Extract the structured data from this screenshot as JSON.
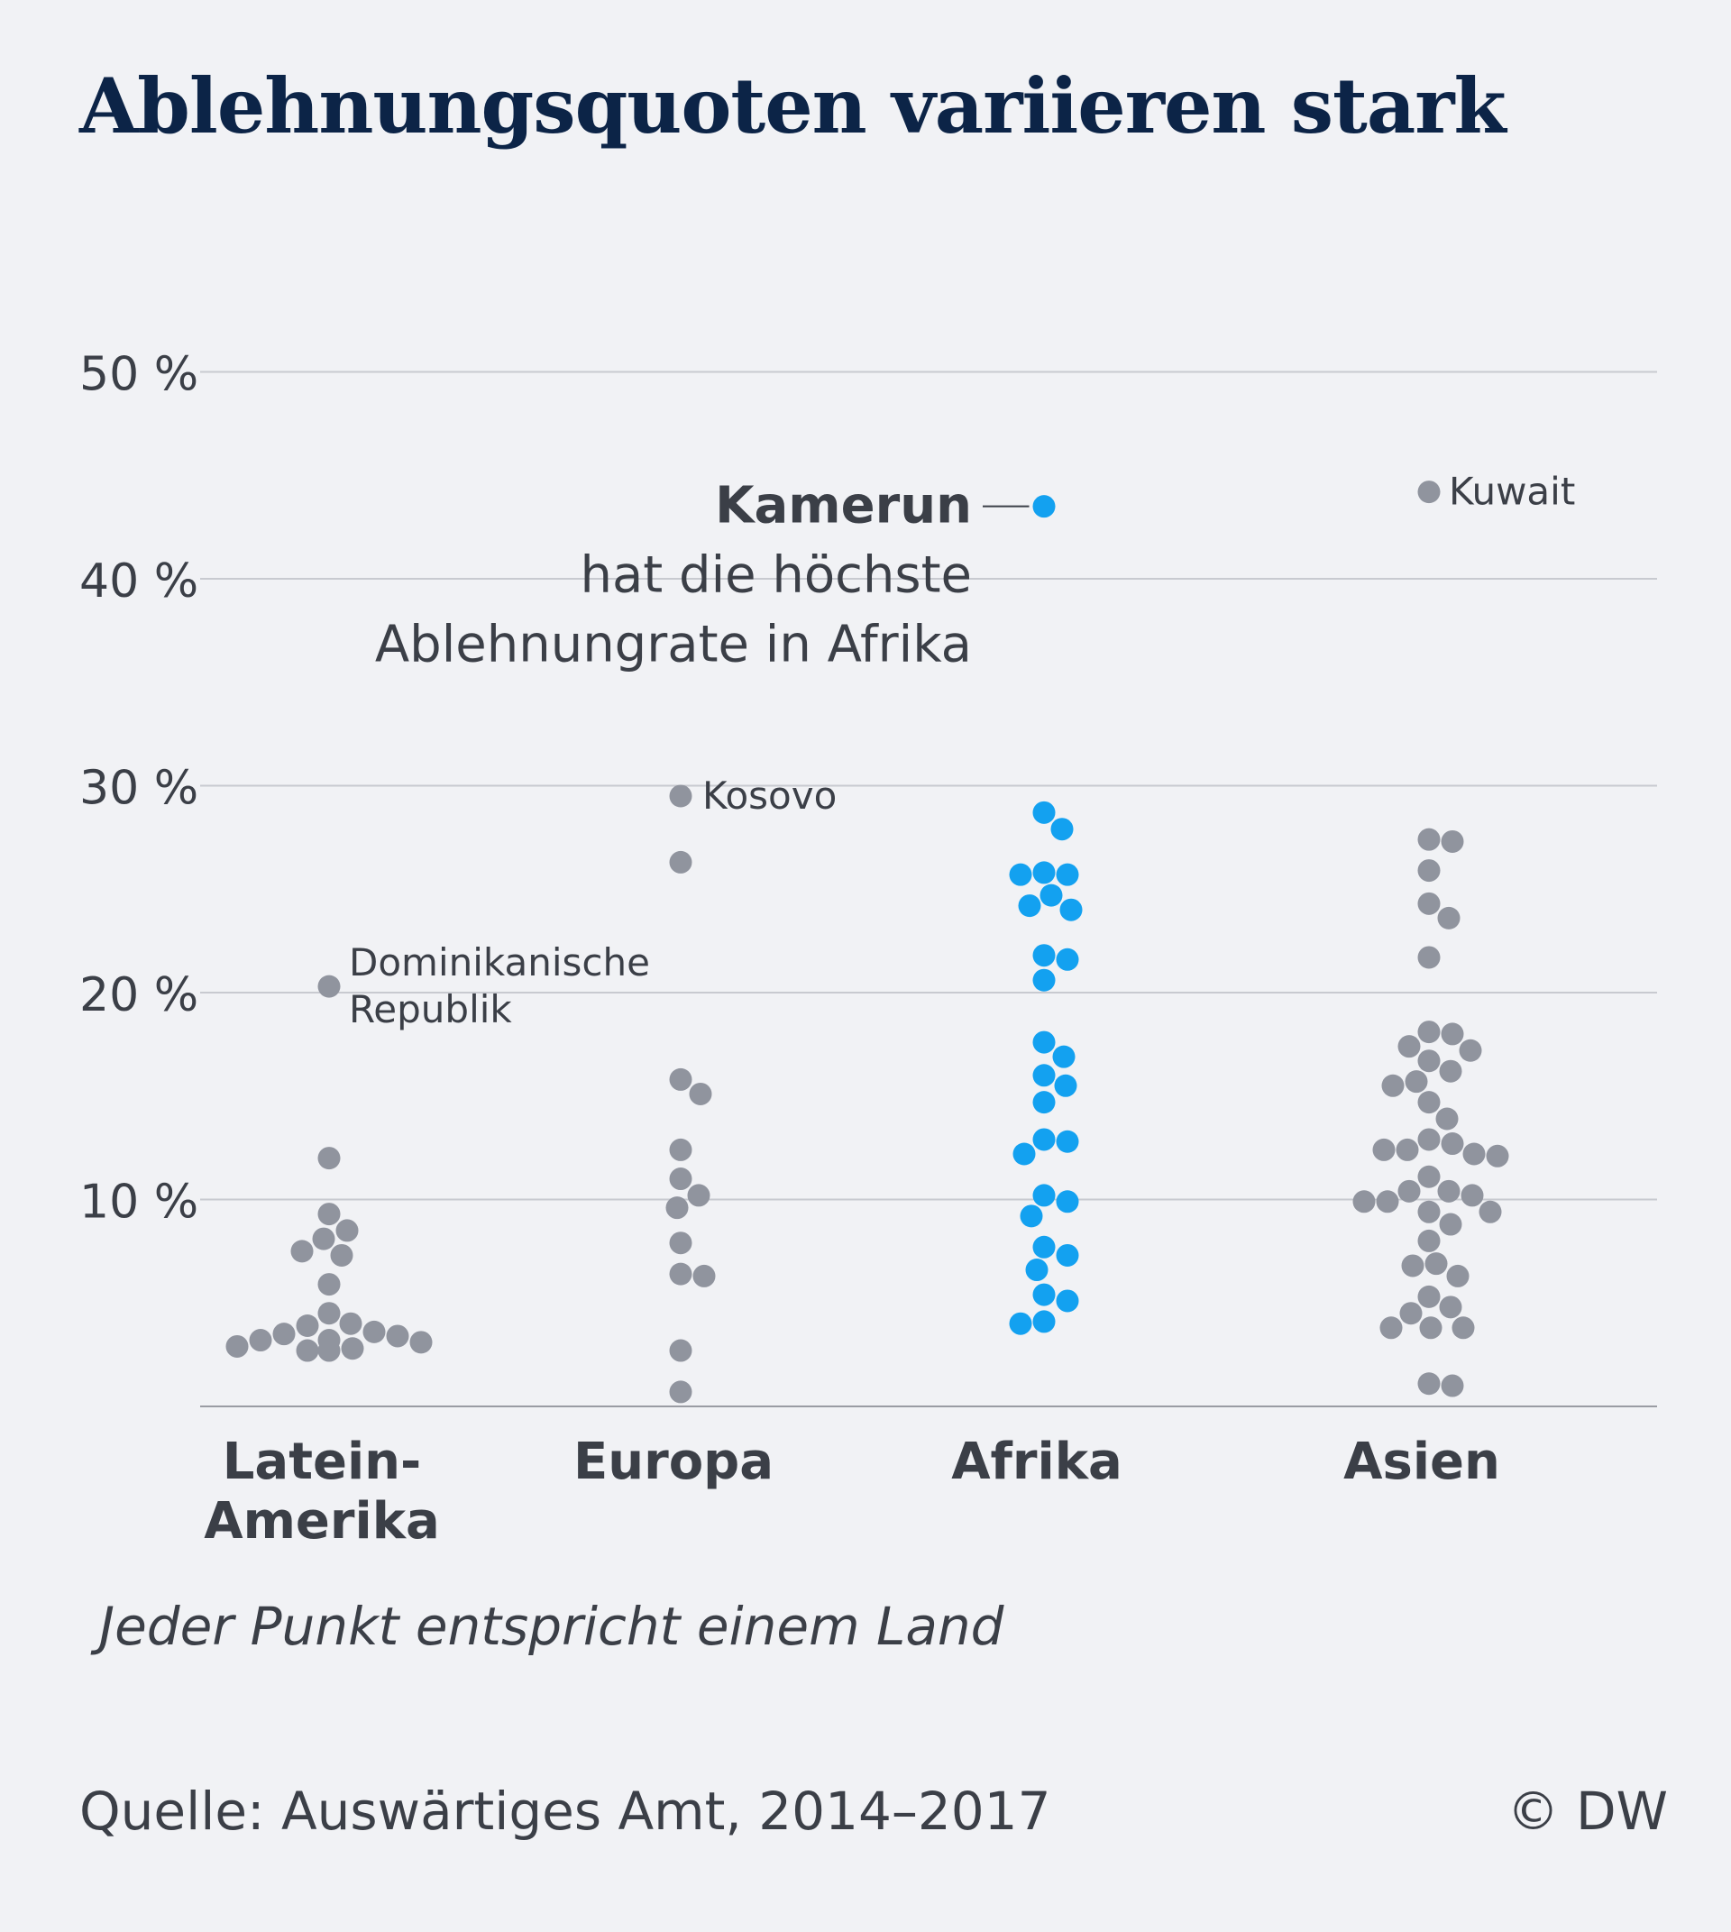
{
  "title": "Ablehnungsquoten variieren stark",
  "note": "Jeder Punkt entspricht einem Land",
  "source": "Quelle: Auswärtiges Amt, 2014–2017",
  "credit": "© DW",
  "colors": {
    "title": "#0c2447",
    "text": "#3b3f47",
    "dot": "#90949e",
    "highlight": "#13a1f0",
    "grid": "#c8cad0",
    "background": "#f1f2f5"
  },
  "chart_data": {
    "type": "scatter",
    "title": "Ablehnungsquoten variieren stark",
    "ylim": [
      0,
      50
    ],
    "yticks": [
      10,
      20,
      30,
      40,
      50
    ],
    "ytick_labels": [
      "10 %",
      "20 %",
      "30 %",
      "40 %",
      "50 %"
    ],
    "grid": true,
    "categories": [
      "Latein-\nAmerika",
      "Europa",
      "Afrika",
      "Asien"
    ],
    "series": [
      {
        "category": "Latein-\nAmerika",
        "highlight": false,
        "values": [
          20.3,
          12.0,
          9.3,
          8.5,
          8.1,
          7.5,
          7.3,
          5.9,
          4.5,
          4.0,
          3.9,
          3.6,
          3.5,
          3.4,
          3.2,
          3.2,
          3.1,
          2.9,
          2.8,
          2.7,
          2.7
        ]
      },
      {
        "category": "Europa",
        "highlight": false,
        "values": [
          29.5,
          26.3,
          15.8,
          15.1,
          12.4,
          11.0,
          10.2,
          9.6,
          7.9,
          6.4,
          6.3,
          2.7,
          0.7
        ]
      },
      {
        "category": "Afrika",
        "highlight": true,
        "values": [
          43.5,
          28.7,
          27.9,
          25.8,
          25.7,
          25.7,
          24.7,
          24.2,
          24.0,
          21.8,
          21.6,
          20.6,
          17.6,
          16.9,
          16.0,
          15.5,
          14.7,
          12.9,
          12.8,
          12.2,
          10.2,
          9.9,
          9.2,
          7.7,
          7.3,
          6.6,
          5.4,
          5.1,
          4.1,
          4.0
        ]
      },
      {
        "category": "Asien",
        "highlight": false,
        "values": [
          44.2,
          27.4,
          27.3,
          25.9,
          24.3,
          23.6,
          21.7,
          18.1,
          18.0,
          17.4,
          17.2,
          16.7,
          16.2,
          15.7,
          15.5,
          14.7,
          13.9,
          12.9,
          12.7,
          12.4,
          12.4,
          12.2,
          12.1,
          11.1,
          10.4,
          10.4,
          10.2,
          9.9,
          9.9,
          9.4,
          9.4,
          8.8,
          8.0,
          6.9,
          6.8,
          6.3,
          5.3,
          4.8,
          4.5,
          3.8,
          3.8,
          3.8,
          1.1,
          1.0
        ]
      }
    ],
    "annotations": {
      "dominikanische": [
        "Dominikanische",
        "Republik"
      ],
      "kosovo": "Kosovo",
      "kuwait": "Kuwait",
      "kamerun_bold": "Kamerun",
      "kamerun_line2": "hat die höchste",
      "kamerun_line3": "Ablehnungrate in Afrika"
    }
  }
}
